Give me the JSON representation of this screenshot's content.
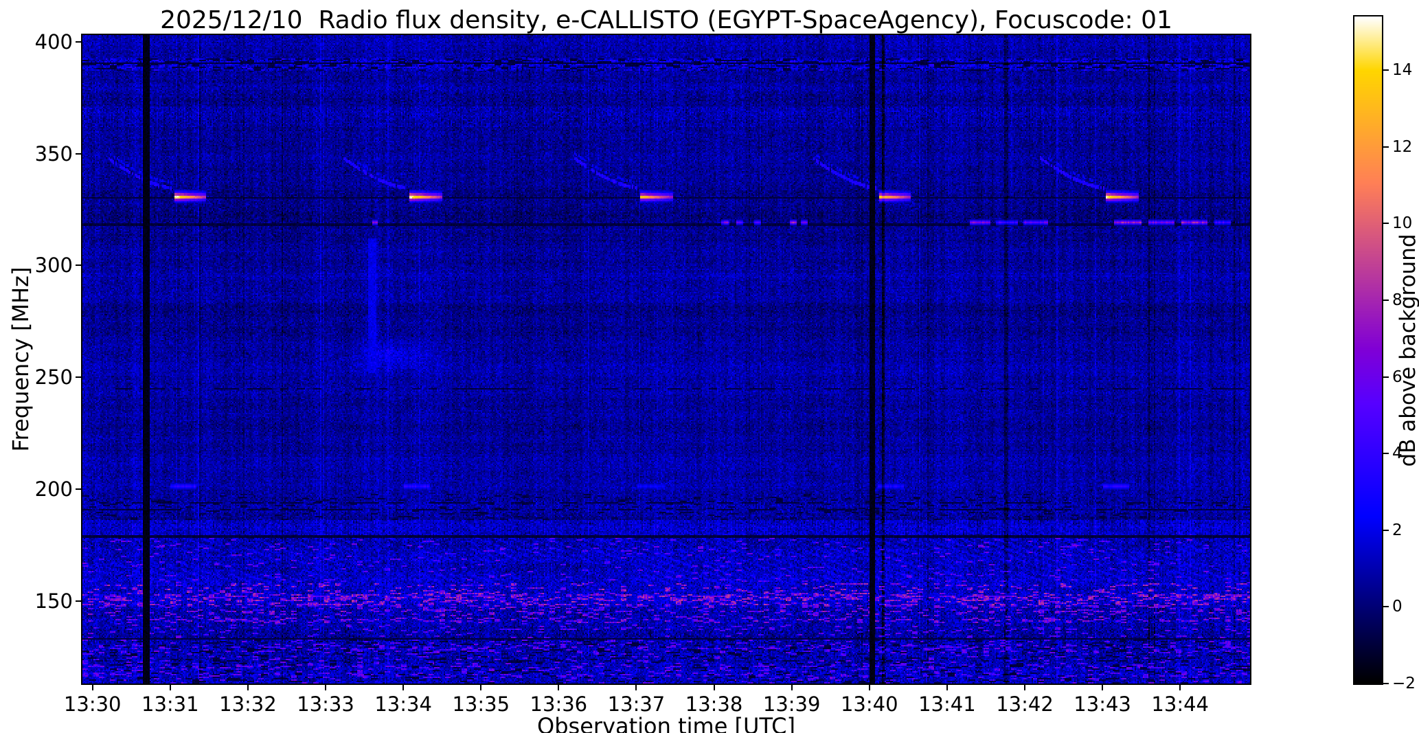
{
  "figure": {
    "background": "#ffffff",
    "text_color": "#000000"
  },
  "chart_data": {
    "type": "heatmap",
    "title": "2025/12/10  Radio flux density, e-CALLISTO (EGYPT-SpaceAgency), Focuscode: 01",
    "xlabel": "Observation time [UTC]",
    "ylabel": "Frequency [MHz]",
    "colorbar_label": "dB above background",
    "colormap": "gnuplot2",
    "value_range": [
      -2,
      15.4
    ],
    "colorbar_ticks": [
      -2,
      0,
      2,
      4,
      6,
      8,
      10,
      12,
      14
    ],
    "colorbar_tick_labels": [
      "−2",
      "0",
      "2",
      "4",
      "6",
      "8",
      "10",
      "12",
      "14"
    ],
    "x_range_minutes": [
      29.87,
      44.9
    ],
    "x_ticks": [
      {
        "minute": 30,
        "label": "13:30"
      },
      {
        "minute": 31,
        "label": "13:31"
      },
      {
        "minute": 32,
        "label": "13:32"
      },
      {
        "minute": 33,
        "label": "13:33"
      },
      {
        "minute": 34,
        "label": "13:34"
      },
      {
        "minute": 35,
        "label": "13:35"
      },
      {
        "minute": 36,
        "label": "13:36"
      },
      {
        "minute": 37,
        "label": "13:37"
      },
      {
        "minute": 38,
        "label": "13:38"
      },
      {
        "minute": 39,
        "label": "13:39"
      },
      {
        "minute": 40,
        "label": "13:40"
      },
      {
        "minute": 41,
        "label": "13:41"
      },
      {
        "minute": 42,
        "label": "13:42"
      },
      {
        "minute": 43,
        "label": "13:43"
      },
      {
        "minute": 44,
        "label": "13:44"
      }
    ],
    "y_range_mhz": [
      113,
      403
    ],
    "y_ticks": [
      400,
      350,
      300,
      250,
      200,
      150
    ],
    "seed": 42,
    "noise": {
      "base": 0.55,
      "sd": 0.55
    },
    "noise_bands": [
      {
        "f_lo": 387.0,
        "f_hi": 392.6,
        "mean": 0.4,
        "sd": 0.7,
        "spike_frac": 0.1,
        "spike_db": 3.8,
        "dark_frac": 0.22
      },
      {
        "f_lo": 372.5,
        "f_hi": 381.0,
        "mean": 0.15,
        "sd": 0.25
      },
      {
        "f_lo": 362.0,
        "f_hi": 371.0,
        "mean": 0.25,
        "sd": 0.35,
        "stripes": true
      },
      {
        "f_lo": 283.0,
        "f_hi": 297.0,
        "mean": 0.25,
        "sd": 0.1
      },
      {
        "f_lo": 186.0,
        "f_hi": 197.5,
        "mean": 0.2,
        "sd": 0.3,
        "dark_frac": 0.07
      },
      {
        "f_lo": 179.5,
        "f_hi": 186.0,
        "mean": 0.8,
        "sd": 0.45,
        "stripes": true
      },
      {
        "f_lo": 158.0,
        "f_hi": 179.5,
        "mean": 0.55,
        "sd": 0.5,
        "diag": true,
        "spike_frac": 0.045,
        "spike_db": 6.5
      },
      {
        "f_lo": 148.0,
        "f_hi": 158.0,
        "mean": 0.9,
        "sd": 0.55,
        "spike_frac": 0.14,
        "spike_db": 8.5
      },
      {
        "f_lo": 140.0,
        "f_hi": 148.0,
        "mean": 0.7,
        "sd": 0.6,
        "spike_frac": 0.09,
        "spike_db": 7.5
      },
      {
        "f_lo": 133.0,
        "f_hi": 140.0,
        "mean": 0.5,
        "sd": 0.5,
        "spike_frac": 0.05,
        "spike_db": 6.5
      },
      {
        "f_lo": 113.0,
        "f_hi": 133.0,
        "mean": 0.6,
        "sd": 0.55,
        "spike_frac": 0.08,
        "spike_db": 6.5,
        "dark_frac": 0.1
      }
    ],
    "hot_rows": [
      152.3,
      150.6,
      147.8,
      145.2,
      141.5,
      137.2,
      129.4,
      127.6,
      120.3,
      116.8
    ],
    "bursts": {
      "times": [
        31.05,
        34.08,
        37.05,
        40.12,
        43.05
      ],
      "amps": [
        1.0,
        1.0,
        0.88,
        0.92,
        0.97
      ],
      "f_lo": 327.6,
      "f_hi": 334.0,
      "f_peak": 330.7,
      "dur": 0.42,
      "peak_db": 13.5,
      "arc": {
        "f_start": 348,
        "f_end": 334.5,
        "lead": 0.85,
        "db": 3.2
      }
    },
    "seg318_f": 319.2,
    "seg318": [
      [
        33.6,
        33.68,
        9
      ],
      [
        38.1,
        38.2,
        7
      ],
      [
        38.28,
        38.38,
        6
      ],
      [
        38.52,
        38.6,
        5
      ],
      [
        38.98,
        39.06,
        8
      ],
      [
        39.12,
        39.2,
        6
      ],
      [
        41.3,
        41.55,
        7
      ],
      [
        41.62,
        41.92,
        5
      ],
      [
        41.98,
        42.3,
        6
      ],
      [
        43.15,
        43.5,
        9
      ],
      [
        43.6,
        43.92,
        7
      ],
      [
        44.02,
        44.36,
        8
      ],
      [
        44.44,
        44.65,
        5
      ]
    ],
    "seg200": {
      "f": 201.2,
      "dur": 0.34,
      "times": [
        31.0,
        34.0,
        37.02,
        40.1,
        43.0
      ],
      "amps": [
        3.8,
        3.8,
        2.8,
        3.3,
        3.6
      ]
    },
    "dark_hlines": [
      {
        "f": 390.4,
        "w": 0.8
      },
      {
        "f": 330.2,
        "w": 1.0
      },
      {
        "f": 318.2,
        "w": 0.7
      },
      {
        "f": 245.0,
        "w": 0.6,
        "dashed": true
      },
      {
        "f": 193.6,
        "w": 0.6,
        "dashed": true
      },
      {
        "f": 190.8,
        "w": 0.6,
        "dashed": true
      },
      {
        "f": 178.6,
        "w": 1.4
      },
      {
        "f": 133.0,
        "w": 1.0
      }
    ],
    "dark_vlines": [
      {
        "t": 30.7,
        "w": 0.09,
        "depth": 2.2
      },
      {
        "t": 40.04,
        "w": 0.06,
        "depth": 2.2
      },
      {
        "t": 40.18,
        "w": 0.05,
        "depth": 1.8
      },
      {
        "t": 41.76,
        "w": 0.05,
        "depth": 1.2
      }
    ],
    "blob": {
      "t": 33.85,
      "f": 260,
      "sd_t": 0.5,
      "sd_f": 4.5,
      "db": 1.4
    },
    "purple_streak": {
      "t": 33.6,
      "w": 0.05,
      "f_lo": 252,
      "f_hi": 312,
      "db": 2.0
    }
  }
}
